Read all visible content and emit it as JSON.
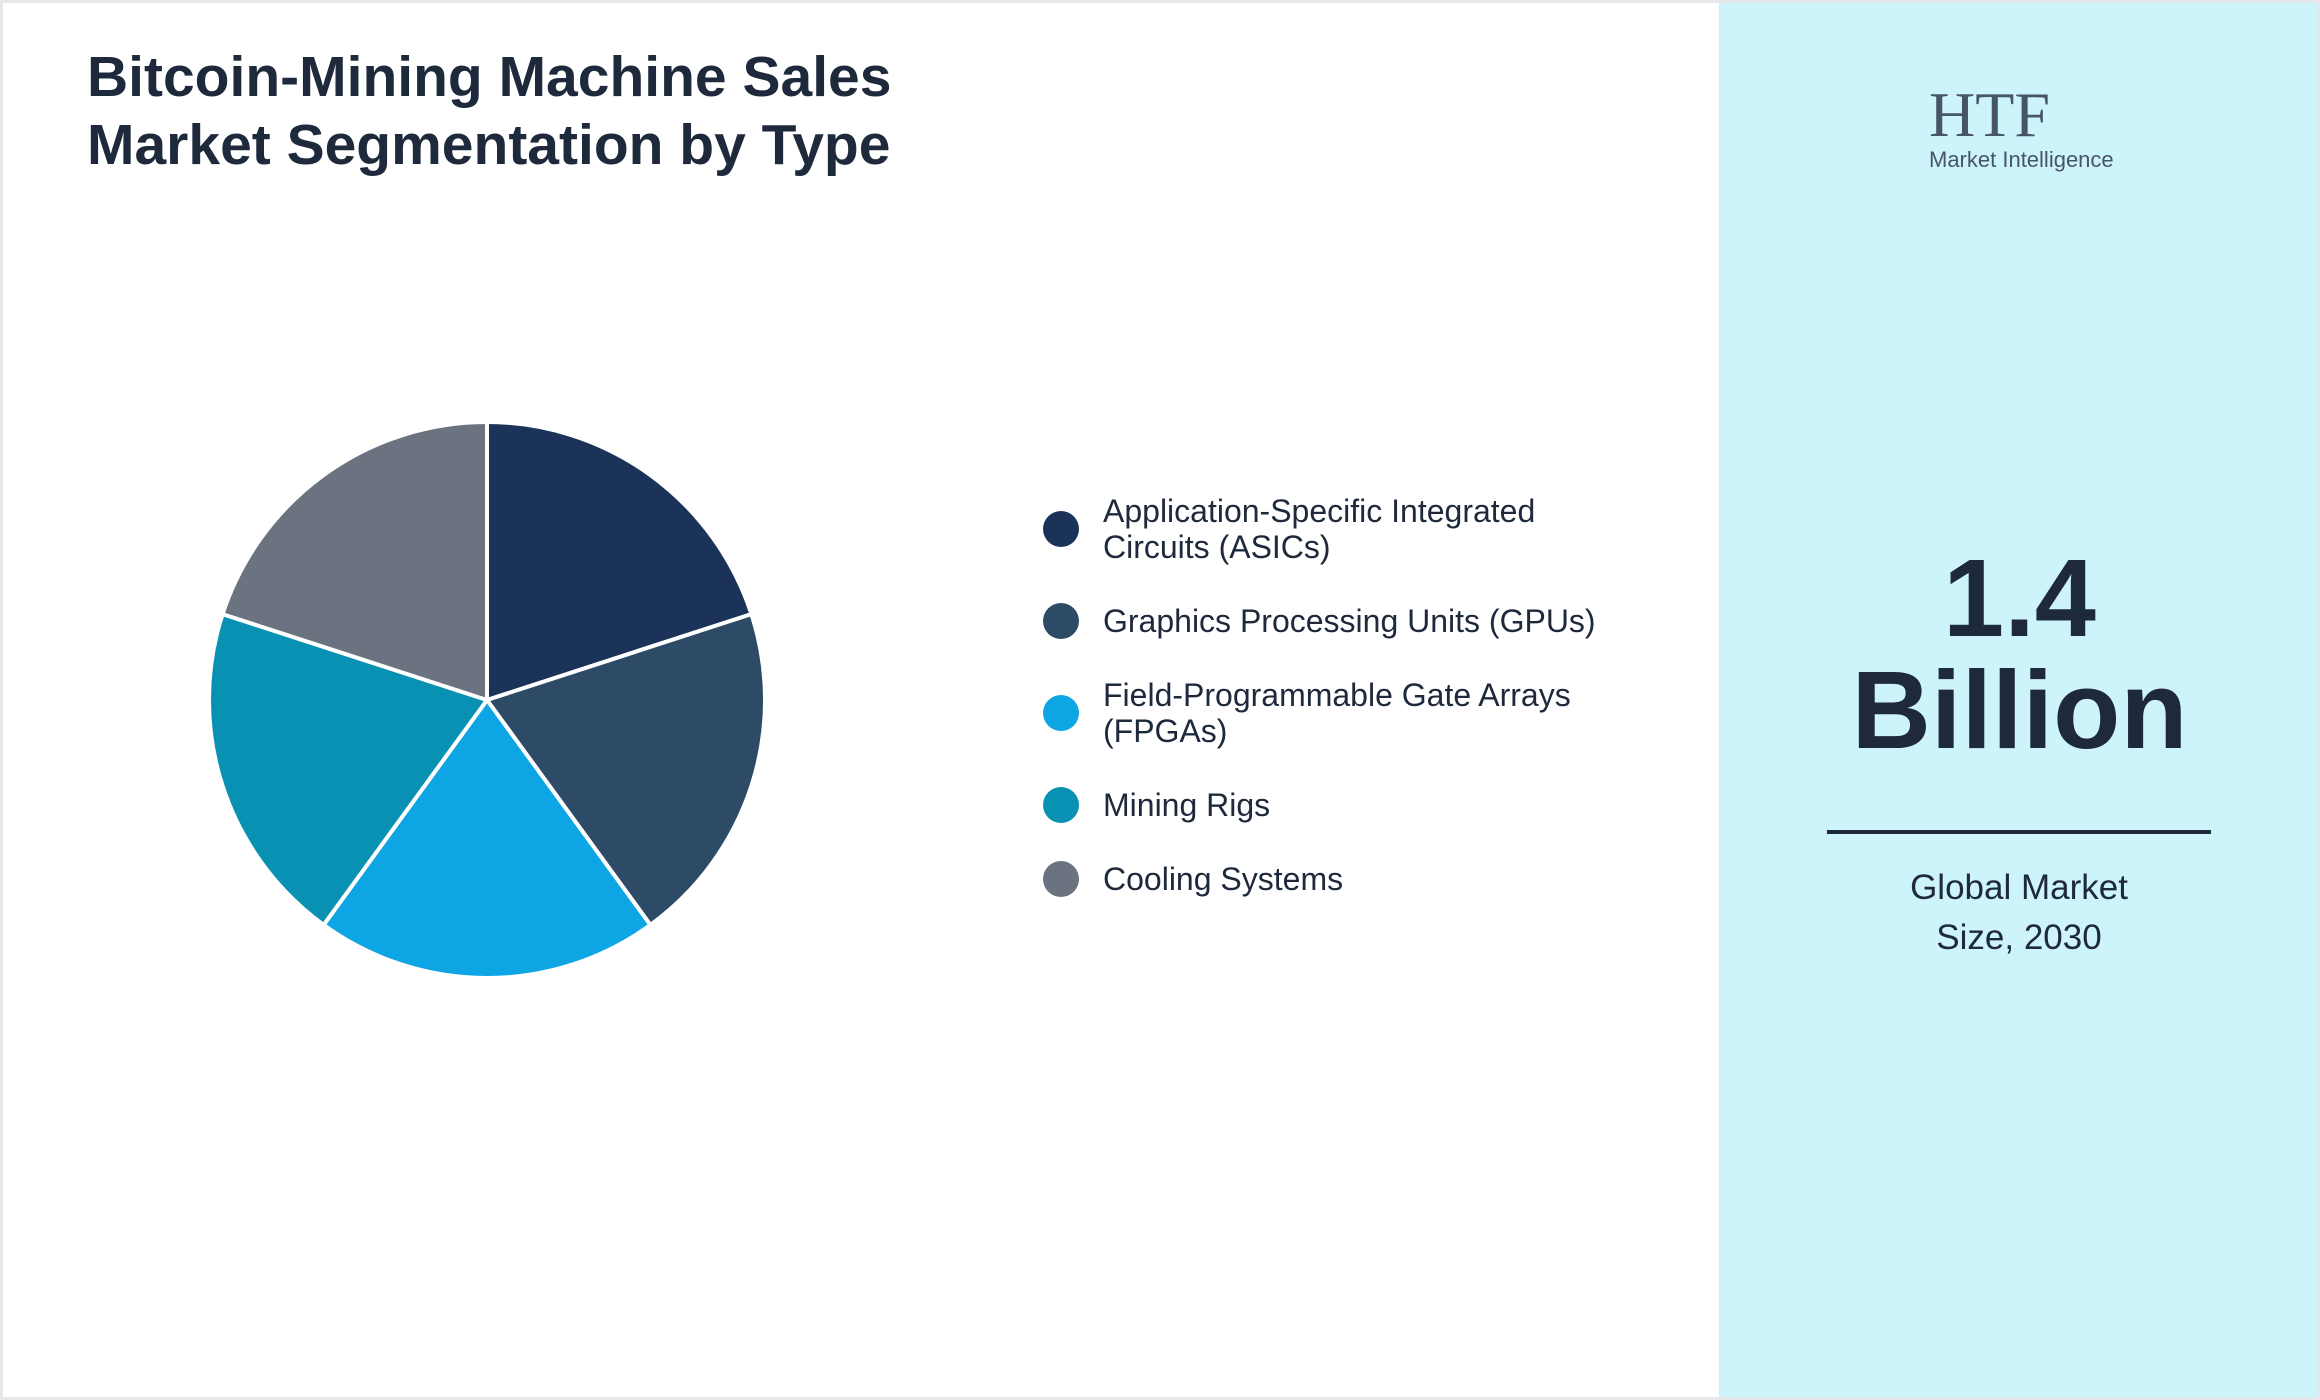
{
  "chart_data": {
    "type": "pie",
    "title": "Bitcoin-Mining Machine Sales Market Segmentation by Type",
    "categories": [
      "Application-Specific Integrated Circuits (ASICs)",
      "Graphics Processing Units (GPUs)",
      "Field-Programmable Gate Arrays (FPGAs)",
      "Mining Rigs",
      "Cooling Systems"
    ],
    "values": [
      20,
      20,
      20,
      20,
      20
    ],
    "colors": [
      "#1b3358",
      "#2d4a67",
      "#0ea5e5",
      "#0891b2",
      "#6b7280"
    ]
  },
  "headline": {
    "value": "1.4 Billion",
    "caption": "Global Market Size, 2030"
  },
  "logo": {
    "name": "HTF",
    "tagline": "Market Intelligence"
  }
}
